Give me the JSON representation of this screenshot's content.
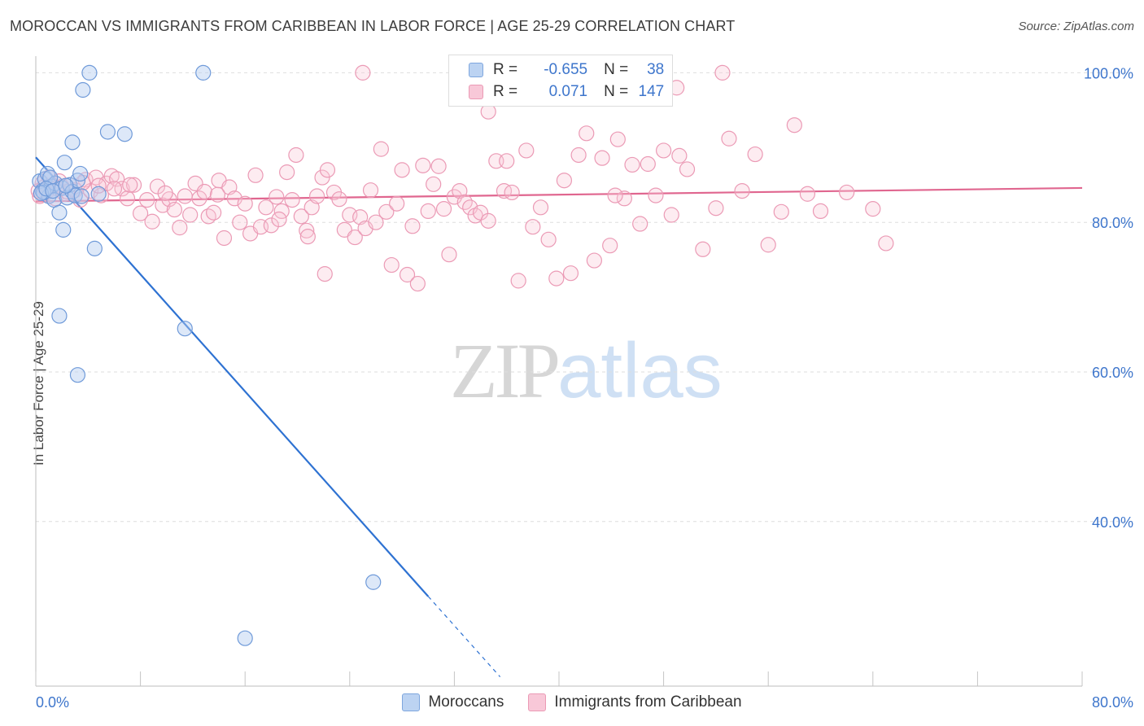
{
  "chart_data": {
    "type": "scatter",
    "title": "MOROCCAN VS IMMIGRANTS FROM CARIBBEAN IN LABOR FORCE | AGE 25-29 CORRELATION CHART",
    "source": "Source: ZipAtlas.com",
    "ylabel": "In Labor Force | Age 25-29",
    "xlabel": "",
    "xlim": [
      0,
      80
    ],
    "ylim": [
      18,
      102
    ],
    "x_tick_labels": [
      "0.0%",
      "80.0%"
    ],
    "y_ticks": [
      {
        "value": 100,
        "label": "100.0%"
      },
      {
        "value": 80,
        "label": "80.0%"
      },
      {
        "value": 60,
        "label": "60.0%"
      },
      {
        "value": 40,
        "label": "40.0%"
      }
    ],
    "grid": true,
    "legend": [
      {
        "series": "Moroccans",
        "r_label": "R =",
        "r": "-0.655",
        "n_label": "N =",
        "n": "38",
        "color": "#5b8fd8"
      },
      {
        "series": "Immigrants from Caribbean",
        "r_label": "R =",
        "r": "0.071",
        "n_label": "N =",
        "n": "147",
        "color": "#e879a0"
      }
    ],
    "series": [
      {
        "name": "Moroccans",
        "color": "#5b8fd8",
        "trend": {
          "x0": 0,
          "y0": 88.7,
          "x1": 30,
          "y1": 30.0,
          "x_dash_end": 35.5
        },
        "points": [
          [
            0.3,
            85.5
          ],
          [
            0.5,
            84.2
          ],
          [
            0.7,
            85.8
          ],
          [
            0.9,
            86.5
          ],
          [
            1.0,
            83.5
          ],
          [
            1.2,
            84.8
          ],
          [
            1.4,
            83.0
          ],
          [
            1.5,
            85.2
          ],
          [
            1.8,
            81.3
          ],
          [
            2.0,
            84.6
          ],
          [
            2.2,
            88.0
          ],
          [
            2.4,
            83.3
          ],
          [
            2.6,
            85.0
          ],
          [
            2.8,
            84.1
          ],
          [
            3.0,
            83.6
          ],
          [
            3.2,
            85.6
          ],
          [
            3.4,
            86.5
          ],
          [
            3.6,
            97.7
          ],
          [
            4.1,
            100.0
          ],
          [
            4.5,
            76.5
          ],
          [
            2.1,
            79.0
          ],
          [
            1.8,
            67.5
          ],
          [
            3.2,
            59.6
          ],
          [
            2.8,
            90.7
          ],
          [
            5.5,
            92.1
          ],
          [
            6.8,
            91.8
          ],
          [
            4.8,
            83.8
          ],
          [
            0.6,
            84.0
          ],
          [
            1.1,
            86.0
          ],
          [
            11.4,
            65.8
          ],
          [
            12.8,
            100.0
          ],
          [
            25.8,
            31.9
          ],
          [
            16.0,
            24.4
          ],
          [
            0.4,
            83.9
          ],
          [
            0.8,
            84.5
          ],
          [
            1.3,
            84.2
          ],
          [
            2.3,
            84.9
          ],
          [
            3.5,
            83.5
          ]
        ]
      },
      {
        "name": "Immigrants from Caribbean",
        "color": "#e879a0",
        "trend": {
          "x0": 0,
          "y0": 82.8,
          "x1": 80,
          "y1": 84.6
        },
        "points": [
          [
            0.3,
            83.5
          ],
          [
            0.5,
            85.2
          ],
          [
            0.8,
            84.0
          ],
          [
            1.0,
            86.0
          ],
          [
            1.2,
            84.5
          ],
          [
            1.5,
            83.2
          ],
          [
            1.8,
            85.5
          ],
          [
            2.0,
            84.8
          ],
          [
            2.2,
            83.8
          ],
          [
            2.6,
            85.0
          ],
          [
            3.0,
            84.3
          ],
          [
            3.4,
            83.0
          ],
          [
            3.8,
            85.7
          ],
          [
            4.2,
            84.2
          ],
          [
            4.6,
            86.0
          ],
          [
            5.0,
            83.6
          ],
          [
            5.4,
            85.2
          ],
          [
            5.8,
            86.2
          ],
          [
            6.2,
            85.8
          ],
          [
            6.6,
            84.5
          ],
          [
            7.0,
            83.2
          ],
          [
            7.5,
            85.0
          ],
          [
            8.0,
            81.2
          ],
          [
            8.5,
            83.0
          ],
          [
            8.9,
            80.1
          ],
          [
            9.3,
            84.8
          ],
          [
            9.7,
            82.3
          ],
          [
            10.2,
            83.1
          ],
          [
            10.6,
            81.7
          ],
          [
            11.0,
            79.3
          ],
          [
            11.4,
            83.5
          ],
          [
            11.8,
            81.0
          ],
          [
            12.2,
            85.2
          ],
          [
            12.5,
            83.2
          ],
          [
            12.9,
            84.1
          ],
          [
            13.2,
            80.8
          ],
          [
            13.6,
            81.3
          ],
          [
            14.0,
            85.6
          ],
          [
            14.4,
            77.9
          ],
          [
            14.8,
            84.7
          ],
          [
            15.2,
            83.2
          ],
          [
            15.6,
            80.0
          ],
          [
            16.0,
            82.5
          ],
          [
            16.4,
            78.5
          ],
          [
            16.8,
            86.3
          ],
          [
            17.2,
            79.4
          ],
          [
            17.6,
            82.0
          ],
          [
            18.0,
            79.6
          ],
          [
            18.4,
            83.4
          ],
          [
            18.8,
            81.5
          ],
          [
            19.2,
            86.7
          ],
          [
            19.6,
            83.0
          ],
          [
            19.9,
            89.0
          ],
          [
            20.3,
            80.8
          ],
          [
            20.7,
            78.9
          ],
          [
            21.1,
            82.0
          ],
          [
            21.5,
            83.5
          ],
          [
            21.9,
            86.0
          ],
          [
            22.3,
            87.0
          ],
          [
            22.8,
            84.0
          ],
          [
            23.2,
            83.1
          ],
          [
            23.6,
            79.0
          ],
          [
            24.0,
            81.0
          ],
          [
            24.4,
            78.0
          ],
          [
            24.8,
            80.7
          ],
          [
            25.2,
            79.2
          ],
          [
            25.6,
            84.3
          ],
          [
            26.0,
            80.0
          ],
          [
            26.4,
            89.8
          ],
          [
            26.8,
            81.4
          ],
          [
            27.2,
            74.3
          ],
          [
            27.6,
            82.5
          ],
          [
            28.0,
            87.0
          ],
          [
            28.4,
            73.0
          ],
          [
            28.8,
            79.5
          ],
          [
            29.2,
            71.8
          ],
          [
            29.6,
            87.6
          ],
          [
            30.0,
            81.5
          ],
          [
            30.4,
            85.1
          ],
          [
            30.8,
            87.5
          ],
          [
            31.2,
            81.8
          ],
          [
            31.6,
            75.7
          ],
          [
            32.0,
            83.4
          ],
          [
            32.4,
            84.2
          ],
          [
            32.8,
            82.7
          ],
          [
            33.2,
            82.0
          ],
          [
            33.6,
            80.9
          ],
          [
            34.0,
            81.3
          ],
          [
            34.6,
            80.2
          ],
          [
            35.2,
            88.2
          ],
          [
            35.8,
            84.2
          ],
          [
            36.4,
            84.0
          ],
          [
            36.9,
            72.2
          ],
          [
            37.5,
            89.6
          ],
          [
            38.0,
            79.4
          ],
          [
            38.6,
            82.0
          ],
          [
            39.2,
            77.7
          ],
          [
            39.8,
            72.5
          ],
          [
            40.4,
            85.6
          ],
          [
            40.9,
            73.2
          ],
          [
            41.5,
            89.0
          ],
          [
            42.1,
            91.9
          ],
          [
            42.7,
            74.9
          ],
          [
            43.3,
            88.6
          ],
          [
            43.9,
            76.9
          ],
          [
            44.5,
            91.1
          ],
          [
            45.0,
            83.2
          ],
          [
            45.6,
            87.7
          ],
          [
            46.2,
            79.8
          ],
          [
            46.8,
            87.8
          ],
          [
            47.4,
            83.6
          ],
          [
            48.0,
            89.6
          ],
          [
            48.6,
            81.0
          ],
          [
            49.2,
            88.9
          ],
          [
            49.8,
            87.1
          ],
          [
            51.0,
            76.4
          ],
          [
            52.0,
            81.9
          ],
          [
            53.0,
            91.2
          ],
          [
            54.0,
            84.2
          ],
          [
            55.0,
            89.1
          ],
          [
            56.0,
            77.0
          ],
          [
            57.0,
            81.4
          ],
          [
            58.0,
            93.0
          ],
          [
            59.0,
            83.8
          ],
          [
            60.0,
            81.5
          ],
          [
            62.0,
            84.0
          ],
          [
            64.0,
            81.8
          ],
          [
            65.0,
            77.2
          ],
          [
            25.0,
            100.0
          ],
          [
            52.5,
            100.0
          ],
          [
            49.0,
            98.0
          ],
          [
            34.6,
            94.8
          ],
          [
            36.0,
            88.2
          ],
          [
            44.3,
            83.6
          ],
          [
            20.8,
            78.1
          ],
          [
            22.1,
            73.1
          ],
          [
            18.6,
            80.4
          ],
          [
            13.9,
            83.7
          ],
          [
            9.9,
            83.9
          ],
          [
            7.2,
            85.0
          ],
          [
            6.0,
            84.5
          ],
          [
            4.8,
            84.9
          ],
          [
            3.6,
            85.3
          ],
          [
            2.4,
            84.1
          ],
          [
            1.6,
            84.6
          ],
          [
            0.6,
            84.7
          ],
          [
            0.2,
            84.2
          ]
        ]
      }
    ]
  }
}
